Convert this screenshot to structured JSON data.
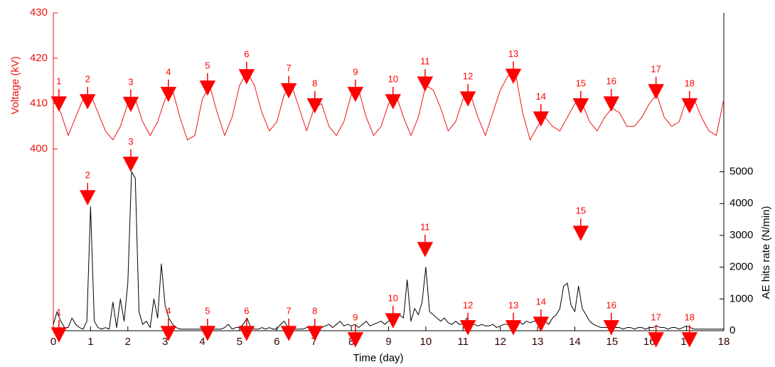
{
  "chart_data": {
    "type": "line",
    "xlabel": "Time (day)",
    "ylabel": "Voltage (kV)",
    "y2label": "AE hits rate (N/min)",
    "xlim": [
      0,
      18
    ],
    "xticks": [
      0,
      1,
      2,
      3,
      4,
      5,
      6,
      7,
      8,
      9,
      10,
      11,
      12,
      13,
      14,
      15,
      16,
      17,
      18
    ],
    "ylim": [
      360,
      430
    ],
    "yticks": [
      400,
      410,
      420,
      430
    ],
    "y2lim": [
      0,
      10000
    ],
    "y2ticks": [
      0,
      1000,
      2000,
      3000,
      4000,
      5000
    ],
    "series": [
      {
        "name": "Voltage",
        "color": "#ee1111",
        "axis": "y",
        "x": [
          0,
          0.2,
          0.4,
          0.6,
          0.8,
          1,
          1.2,
          1.4,
          1.6,
          1.8,
          2,
          2.2,
          2.4,
          2.6,
          2.8,
          3,
          3.2,
          3.4,
          3.6,
          3.8,
          4,
          4.2,
          4.4,
          4.6,
          4.8,
          5,
          5.2,
          5.4,
          5.6,
          5.8,
          6,
          6.2,
          6.4,
          6.6,
          6.8,
          7,
          7.2,
          7.4,
          7.6,
          7.8,
          8,
          8.2,
          8.4,
          8.6,
          8.8,
          9,
          9.2,
          9.4,
          9.6,
          9.8,
          10,
          10.2,
          10.4,
          10.6,
          10.8,
          11,
          11.2,
          11.4,
          11.6,
          11.8,
          12,
          12.2,
          12.4,
          12.6,
          12.8,
          13,
          13.2,
          13.4,
          13.6,
          13.8,
          14,
          14.2,
          14.4,
          14.6,
          14.8,
          15,
          15.2,
          15.4,
          15.6,
          15.8,
          16,
          16.2,
          16.4,
          16.6,
          16.8,
          17,
          17.2,
          17.4,
          17.6,
          17.8,
          18
        ],
        "values": [
          411,
          408,
          403,
          407,
          411,
          412,
          408,
          404,
          402,
          405,
          410,
          411,
          406,
          403,
          406,
          411,
          413,
          407,
          402,
          403,
          411,
          414,
          408,
          403,
          407,
          414,
          417,
          414,
          408,
          404,
          406,
          412,
          414,
          409,
          404,
          409,
          410,
          405,
          403,
          406,
          412,
          413,
          407,
          403,
          405,
          410,
          412,
          407,
          403,
          407,
          414,
          413,
          409,
          404,
          406,
          411,
          412,
          407,
          403,
          408,
          413,
          416,
          417,
          408,
          402,
          405,
          407,
          405,
          404,
          407,
          410,
          410,
          406,
          404,
          407,
          409,
          408,
          405,
          405,
          407,
          410,
          412,
          407,
          405,
          406,
          411,
          411,
          407,
          404,
          403,
          411
        ]
      },
      {
        "name": "AE hits rate",
        "color": "#000000",
        "axis": "y2",
        "x": [
          0,
          0.1,
          0.2,
          0.3,
          0.4,
          0.5,
          0.6,
          0.7,
          0.8,
          0.9,
          1,
          1.1,
          1.2,
          1.3,
          1.4,
          1.5,
          1.6,
          1.7,
          1.8,
          1.9,
          2,
          2.1,
          2.2,
          2.3,
          2.4,
          2.5,
          2.6,
          2.7,
          2.8,
          2.9,
          3,
          3.1,
          3.2,
          3.3,
          3.4,
          3.5,
          3.6,
          3.7,
          3.8,
          3.9,
          4,
          4.1,
          4.2,
          4.3,
          4.4,
          4.5,
          4.6,
          4.7,
          4.8,
          4.9,
          5,
          5.1,
          5.2,
          5.3,
          5.4,
          5.5,
          5.6,
          5.7,
          5.8,
          5.9,
          6,
          6.1,
          6.2,
          6.3,
          6.4,
          6.5,
          6.6,
          6.7,
          6.8,
          6.9,
          7,
          7.1,
          7.2,
          7.3,
          7.4,
          7.5,
          7.6,
          7.7,
          7.8,
          7.9,
          8,
          8.1,
          8.2,
          8.3,
          8.4,
          8.5,
          8.6,
          8.7,
          8.8,
          8.9,
          9,
          9.1,
          9.2,
          9.3,
          9.4,
          9.5,
          9.6,
          9.7,
          9.8,
          9.9,
          10,
          10.1,
          10.2,
          10.3,
          10.4,
          10.5,
          10.6,
          10.7,
          10.8,
          10.9,
          11,
          11.1,
          11.2,
          11.3,
          11.4,
          11.5,
          11.6,
          11.7,
          11.8,
          11.9,
          12,
          12.1,
          12.2,
          12.3,
          12.4,
          12.5,
          12.6,
          12.7,
          12.8,
          12.9,
          13,
          13.1,
          13.2,
          13.3,
          13.4,
          13.5,
          13.6,
          13.7,
          13.8,
          13.9,
          14,
          14.1,
          14.2,
          14.3,
          14.4,
          14.5,
          14.6,
          14.7,
          14.8,
          14.9,
          15,
          15.1,
          15.2,
          15.3,
          15.4,
          15.5,
          15.6,
          15.7,
          15.8,
          15.9,
          16,
          16.1,
          16.2,
          16.3,
          16.4,
          16.5,
          16.6,
          16.7,
          16.8,
          16.9,
          17,
          17.1,
          17.2,
          17.3,
          17.4,
          17.5,
          17.6,
          17.7,
          17.8,
          17.9,
          18
        ],
        "values": [
          200,
          600,
          300,
          100,
          100,
          400,
          200,
          100,
          50,
          300,
          3900,
          300,
          100,
          50,
          100,
          50,
          900,
          100,
          1000,
          300,
          1500,
          5000,
          4800,
          600,
          200,
          300,
          100,
          1000,
          400,
          2100,
          800,
          400,
          200,
          100,
          50,
          50,
          50,
          50,
          50,
          50,
          50,
          100,
          150,
          50,
          50,
          50,
          100,
          200,
          50,
          100,
          100,
          200,
          400,
          100,
          50,
          50,
          100,
          50,
          100,
          50,
          50,
          200,
          300,
          100,
          100,
          50,
          50,
          50,
          100,
          100,
          150,
          100,
          100,
          150,
          200,
          100,
          200,
          300,
          150,
          200,
          150,
          200,
          100,
          200,
          300,
          150,
          200,
          250,
          300,
          200,
          300,
          500,
          400,
          500,
          400,
          1600,
          300,
          700,
          500,
          900,
          2000,
          600,
          500,
          400,
          300,
          400,
          250,
          200,
          300,
          200,
          200,
          400,
          250,
          200,
          150,
          200,
          150,
          150,
          200,
          100,
          150,
          200,
          200,
          300,
          250,
          300,
          200,
          300,
          250,
          300,
          300,
          400,
          300,
          200,
          400,
          500,
          700,
          1400,
          1500,
          800,
          600,
          1400,
          700,
          500,
          300,
          200,
          150,
          100,
          100,
          100,
          200,
          100,
          100,
          50,
          100,
          100,
          50,
          100,
          100,
          50,
          100,
          100,
          150,
          100,
          100,
          50,
          100,
          100,
          50,
          100,
          150,
          100,
          50,
          50,
          50,
          50,
          50,
          50,
          50,
          50,
          50
        ]
      }
    ],
    "annotation_color": "#ff0000",
    "annotations": [
      {
        "text": "1",
        "x": 0.15,
        "y": 408.5,
        "axis": "y"
      },
      {
        "text": "2",
        "x": 0.92,
        "y": 409.0,
        "axis": "y"
      },
      {
        "text": "3",
        "x": 2.08,
        "y": 408.4,
        "axis": "y"
      },
      {
        "text": "4",
        "x": 3.09,
        "y": 410.6,
        "axis": "y"
      },
      {
        "text": "5",
        "x": 4.14,
        "y": 412.0,
        "axis": "y"
      },
      {
        "text": "6",
        "x": 5.19,
        "y": 414.5,
        "axis": "y"
      },
      {
        "text": "7",
        "x": 6.32,
        "y": 411.4,
        "axis": "y"
      },
      {
        "text": "8",
        "x": 7.02,
        "y": 408.1,
        "axis": "y"
      },
      {
        "text": "9",
        "x": 8.11,
        "y": 410.6,
        "axis": "y"
      },
      {
        "text": "10",
        "x": 9.12,
        "y": 409.0,
        "axis": "y"
      },
      {
        "text": "11",
        "x": 9.98,
        "y": 412.9,
        "axis": "y"
      },
      {
        "text": "12",
        "x": 11.13,
        "y": 409.6,
        "axis": "y"
      },
      {
        "text": "13",
        "x": 12.35,
        "y": 414.6,
        "axis": "y"
      },
      {
        "text": "14",
        "x": 13.09,
        "y": 405.2,
        "axis": "y"
      },
      {
        "text": "15",
        "x": 14.16,
        "y": 408.1,
        "axis": "y"
      },
      {
        "text": "16",
        "x": 14.98,
        "y": 408.5,
        "axis": "y"
      },
      {
        "text": "17",
        "x": 16.18,
        "y": 411.2,
        "axis": "y"
      },
      {
        "text": "18",
        "x": 17.08,
        "y": 408.1,
        "axis": "y"
      },
      {
        "text": "1",
        "x": 0.15,
        "y": -336,
        "axis": "y2"
      },
      {
        "text": "2",
        "x": 0.92,
        "y": 3980,
        "axis": "y2"
      },
      {
        "text": "3",
        "x": 2.08,
        "y": 5030,
        "axis": "y2"
      },
      {
        "text": "4",
        "x": 3.09,
        "y": -290,
        "axis": "y2"
      },
      {
        "text": "5",
        "x": 4.14,
        "y": -290,
        "axis": "y2"
      },
      {
        "text": "6",
        "x": 5.19,
        "y": -290,
        "axis": "y2"
      },
      {
        "text": "7",
        "x": 6.32,
        "y": -290,
        "axis": "y2"
      },
      {
        "text": "8",
        "x": 7.02,
        "y": -290,
        "axis": "y2"
      },
      {
        "text": "9",
        "x": 8.11,
        "y": -490,
        "axis": "y2"
      },
      {
        "text": "10",
        "x": 9.12,
        "y": 110,
        "axis": "y2"
      },
      {
        "text": "11",
        "x": 9.98,
        "y": 2350,
        "axis": "y2"
      },
      {
        "text": "12",
        "x": 11.13,
        "y": -110,
        "axis": "y2"
      },
      {
        "text": "13",
        "x": 12.35,
        "y": -110,
        "axis": "y2"
      },
      {
        "text": "14",
        "x": 13.09,
        "y": 0,
        "axis": "y2"
      },
      {
        "text": "15",
        "x": 14.16,
        "y": 2860,
        "axis": "y2"
      },
      {
        "text": "16",
        "x": 14.98,
        "y": -110,
        "axis": "y2"
      },
      {
        "text": "17",
        "x": 16.18,
        "y": -490,
        "axis": "y2"
      },
      {
        "text": "18",
        "x": 17.08,
        "y": -490,
        "axis": "y2"
      }
    ]
  }
}
